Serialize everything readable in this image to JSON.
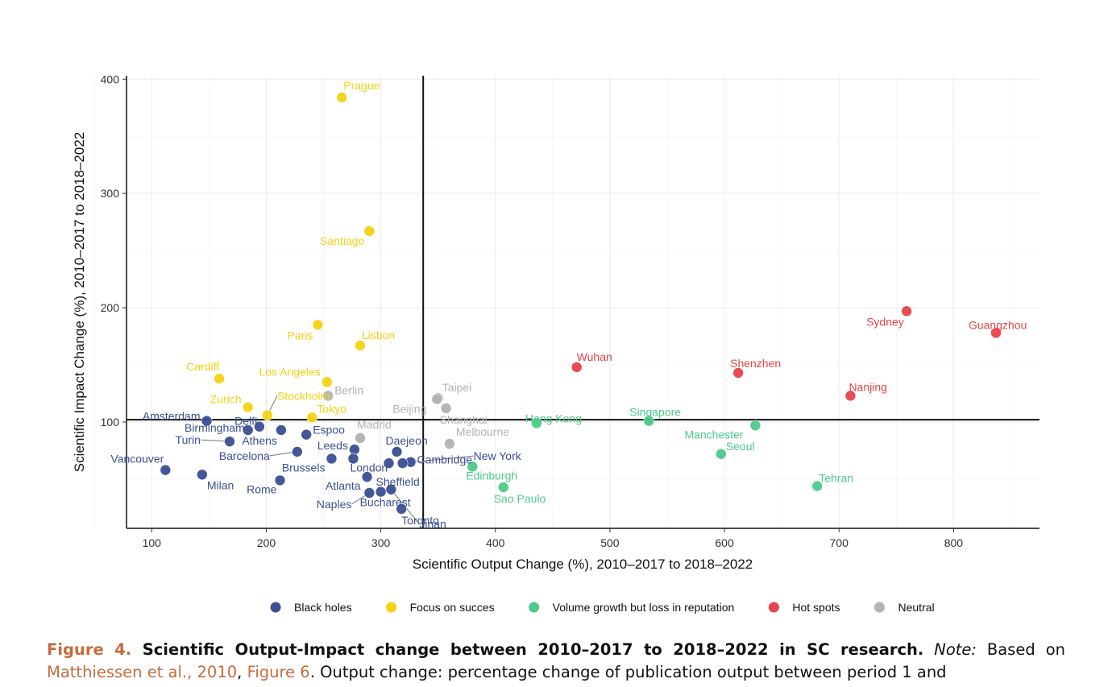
{
  "chart_data": {
    "type": "scatter",
    "xlabel": "Scientific Output Change (%), 2010–2017 to 2018–2022",
    "ylabel": "Scientific Impact Change (%), 2010–2017 to 2018–2022",
    "xlim": [
      78,
      875
    ],
    "ylim": [
      7,
      403
    ],
    "xticks": [
      100,
      200,
      300,
      400,
      500,
      600,
      700,
      800
    ],
    "yticks": [
      100,
      200,
      300,
      400
    ],
    "grid": true,
    "reference_lines": {
      "x": 337,
      "y": 102
    },
    "legend_position": "bottom",
    "categories": [
      {
        "name": "Black holes",
        "color": "#3a4f94"
      },
      {
        "name": "Focus on succes",
        "color": "#f5d214"
      },
      {
        "name": "Volume growth but loss in reputation",
        "color": "#4ccb8a"
      },
      {
        "name": "Hot spots",
        "color": "#e8434a"
      },
      {
        "name": "Neutral",
        "color": "#b3b3b3"
      }
    ],
    "points": [
      {
        "city": "Amsterdam",
        "x": 148,
        "y": 101,
        "cat": 0
      },
      {
        "city": "Delft",
        "x": 194,
        "y": 96,
        "cat": 0
      },
      {
        "city": "Birmingham",
        "x": 184,
        "y": 93,
        "cat": 0
      },
      {
        "city": "Turin",
        "x": 168,
        "y": 83,
        "cat": 0
      },
      {
        "city": "Vancouver",
        "x": 112,
        "y": 58,
        "cat": 0
      },
      {
        "city": "Milan",
        "x": 144,
        "y": 54,
        "cat": 0
      },
      {
        "city": "Athens",
        "x": 213,
        "y": 93,
        "cat": 0
      },
      {
        "city": "Espoo",
        "x": 235,
        "y": 89,
        "cat": 0
      },
      {
        "city": "Barcelona",
        "x": 227,
        "y": 74,
        "cat": 0
      },
      {
        "city": "Rome",
        "x": 212,
        "y": 49,
        "cat": 0
      },
      {
        "city": "Brussels",
        "x": 257,
        "y": 68,
        "cat": 0
      },
      {
        "city": "Leeds",
        "x": 277,
        "y": 76,
        "cat": 0
      },
      {
        "city": "London",
        "x": 276,
        "y": 68,
        "cat": 0
      },
      {
        "city": "Atlanta",
        "x": 288,
        "y": 52,
        "cat": 0
      },
      {
        "city": "Daejeon",
        "x": 314,
        "y": 74,
        "cat": 0
      },
      {
        "city": "Cambridge",
        "x": 326,
        "y": 65,
        "cat": 0
      },
      {
        "city": "New York",
        "x": 319,
        "y": 64,
        "cat": 0
      },
      {
        "city": "Sheffield",
        "x": 307,
        "y": 64,
        "cat": 0
      },
      {
        "city": "Jinan",
        "x": 309,
        "y": 41,
        "cat": 0
      },
      {
        "city": "Naples",
        "x": 290,
        "y": 38,
        "cat": 0
      },
      {
        "city": "Bucharest",
        "x": 300,
        "y": 39,
        "cat": 0
      },
      {
        "city": "Toronto",
        "x": 318,
        "y": 24,
        "cat": 0
      },
      {
        "city": "Prague",
        "x": 266,
        "y": 384,
        "cat": 1
      },
      {
        "city": "Santiago",
        "x": 290,
        "y": 267,
        "cat": 1
      },
      {
        "city": "Paris",
        "x": 245,
        "y": 185,
        "cat": 1
      },
      {
        "city": "Lisbon",
        "x": 282,
        "y": 167,
        "cat": 1
      },
      {
        "city": "Cardiff",
        "x": 159,
        "y": 138,
        "cat": 1
      },
      {
        "city": "Los Angeles",
        "x": 253,
        "y": 135,
        "cat": 1
      },
      {
        "city": "Zurich",
        "x": 184,
        "y": 113,
        "cat": 1
      },
      {
        "city": "Stockholm",
        "x": 201,
        "y": 106,
        "cat": 1
      },
      {
        "city": "Tokyo",
        "x": 240,
        "y": 104,
        "cat": 1
      },
      {
        "city": "Hong Kong",
        "x": 436,
        "y": 99,
        "cat": 2
      },
      {
        "city": "Singapore",
        "x": 534,
        "y": 101,
        "cat": 2
      },
      {
        "city": "Manchester",
        "x": 627,
        "y": 97,
        "cat": 2
      },
      {
        "city": "Seoul",
        "x": 597,
        "y": 72,
        "cat": 2
      },
      {
        "city": "Edinburgh",
        "x": 380,
        "y": 61,
        "cat": 2
      },
      {
        "city": "Sao Paulo",
        "x": 407,
        "y": 43,
        "cat": 2
      },
      {
        "city": "Tehran",
        "x": 681,
        "y": 44,
        "cat": 2
      },
      {
        "city": "Wuhan",
        "x": 471,
        "y": 148,
        "cat": 3
      },
      {
        "city": "Sydney",
        "x": 759,
        "y": 197,
        "cat": 3
      },
      {
        "city": "Guangzhou",
        "x": 837,
        "y": 178,
        "cat": 3
      },
      {
        "city": "Shenzhen",
        "x": 612,
        "y": 143,
        "cat": 3
      },
      {
        "city": "Nanjing",
        "x": 710,
        "y": 123,
        "cat": 3
      },
      {
        "city": "Berlin",
        "x": 254,
        "y": 123,
        "cat": 4
      },
      {
        "city": "Taipei",
        "x": 350,
        "y": 121,
        "cat": 4
      },
      {
        "city": "Beijing",
        "x": 349,
        "y": 120,
        "cat": 4
      },
      {
        "city": "Shanghai",
        "x": 357,
        "y": 112,
        "cat": 4
      },
      {
        "city": "Madrid",
        "x": 282,
        "y": 86,
        "cat": 4
      },
      {
        "city": "Melbourne",
        "x": 360,
        "y": 81,
        "cat": 4
      }
    ]
  },
  "caption": {
    "figure_label": "Figure 4.",
    "title": " Scientific Output-Impact change between 2010–2017 to 2018–2022 in SC research.",
    "note_label": " Note:",
    "note_text_1": " Based on ",
    "ref_1": "Matthiessen et al., 2010",
    "sep": ", ",
    "ref_2": "Figure 6",
    "note_text_2": ". Output change: percentage change of publication output between period 1 and"
  }
}
